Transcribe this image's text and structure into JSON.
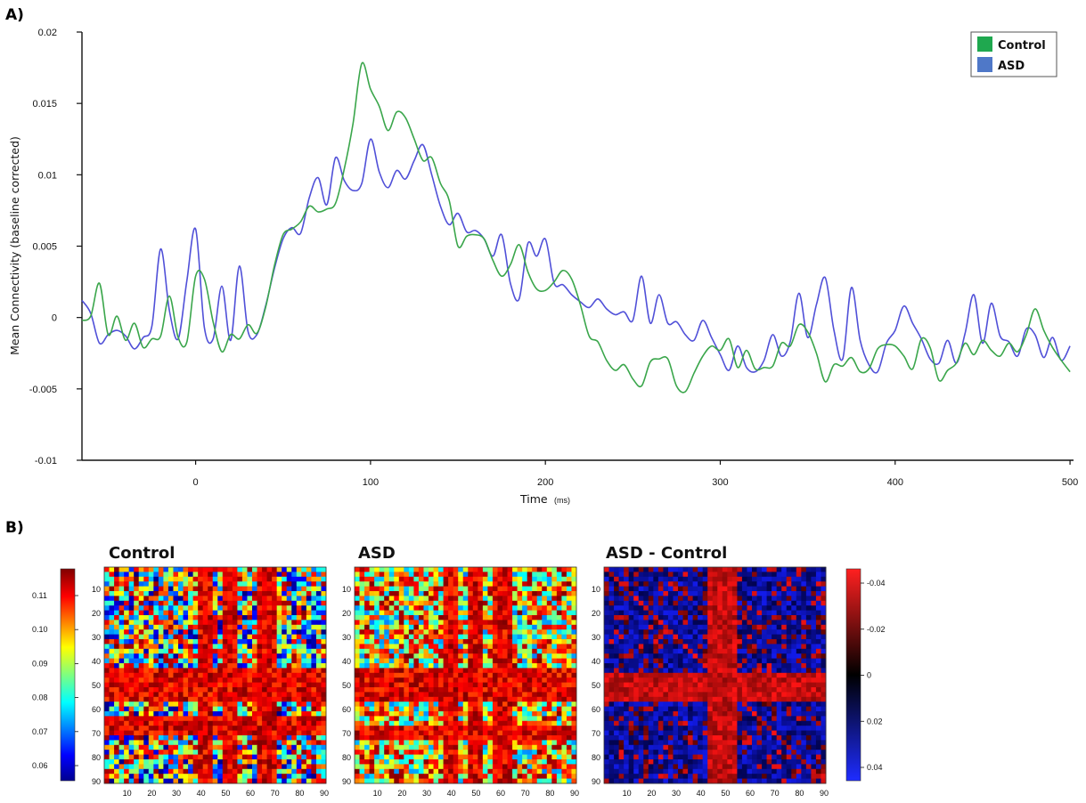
{
  "panels": {
    "a_label": "A)",
    "b_label": "B)"
  },
  "chart_data": [
    {
      "type": "line",
      "xlabel": "Time",
      "xlabel_unit": "(ms)",
      "ylabel": "Mean Connectivity (baseline corrected)",
      "xlim": [
        -65,
        502
      ],
      "ylim": [
        -0.01,
        0.02
      ],
      "x_ticks": [
        0,
        100,
        200,
        300,
        400,
        500
      ],
      "x_tick_labels": [
        "0",
        "100",
        "200",
        "300",
        "400",
        "500"
      ],
      "y_ticks": [
        -0.01,
        -0.005,
        0,
        0.005,
        0.01,
        0.015,
        0.02
      ],
      "y_tick_labels": [
        "-0.01",
        "-0.005",
        "0",
        "0.005",
        "0.01",
        "0.015",
        "0.02"
      ],
      "grid": false,
      "legend_position": "top-right",
      "series": [
        {
          "name": "Control",
          "color": "#3aa64b",
          "x": [
            -65,
            -60,
            -55,
            -50,
            -45,
            -40,
            -35,
            -30,
            -25,
            -20,
            -15,
            -10,
            -5,
            0,
            5,
            10,
            15,
            20,
            25,
            30,
            35,
            40,
            45,
            50,
            55,
            60,
            65,
            70,
            75,
            80,
            85,
            90,
            95,
            100,
            105,
            110,
            115,
            120,
            125,
            130,
            135,
            140,
            145,
            150,
            155,
            160,
            165,
            170,
            175,
            180,
            185,
            190,
            195,
            200,
            205,
            210,
            215,
            220,
            225,
            230,
            235,
            240,
            245,
            250,
            255,
            260,
            265,
            270,
            275,
            280,
            285,
            290,
            295,
            300,
            305,
            310,
            315,
            320,
            325,
            330,
            335,
            340,
            345,
            350,
            355,
            360,
            365,
            370,
            375,
            380,
            385,
            390,
            395,
            400,
            405,
            410,
            415,
            420,
            425,
            430,
            435,
            440,
            445,
            450,
            455,
            460,
            465,
            470,
            475,
            480,
            485,
            490,
            495,
            500
          ],
          "values": [
            -0.0002,
            0.0001,
            0.0024,
            -0.0012,
            0.0001,
            -0.0016,
            -0.0004,
            -0.0021,
            -0.0015,
            -0.0013,
            0.0015,
            -0.0014,
            -0.0017,
            0.0029,
            0.0027,
            -0.0003,
            -0.0024,
            -0.0012,
            -0.0015,
            -0.0005,
            -0.0011,
            0.0007,
            0.0036,
            0.0058,
            0.0062,
            0.0067,
            0.0078,
            0.0074,
            0.0076,
            0.008,
            0.0104,
            0.0136,
            0.0178,
            0.016,
            0.0148,
            0.0131,
            0.0144,
            0.014,
            0.0125,
            0.011,
            0.0112,
            0.0094,
            0.0082,
            0.005,
            0.0057,
            0.0058,
            0.0055,
            0.004,
            0.0029,
            0.0037,
            0.0051,
            0.0032,
            0.002,
            0.0019,
            0.0025,
            0.0033,
            0.0027,
            0.0009,
            -0.0013,
            -0.0017,
            -0.003,
            -0.0037,
            -0.0033,
            -0.0043,
            -0.0048,
            -0.0031,
            -0.0029,
            -0.0029,
            -0.0048,
            -0.0052,
            -0.0039,
            -0.0027,
            -0.002,
            -0.0023,
            -0.0015,
            -0.0035,
            -0.0023,
            -0.0036,
            -0.0035,
            -0.0034,
            -0.0018,
            -0.002,
            -0.0005,
            -0.001,
            -0.0025,
            -0.0045,
            -0.0033,
            -0.0034,
            -0.0028,
            -0.0038,
            -0.0036,
            -0.0022,
            -0.0019,
            -0.002,
            -0.0027,
            -0.0036,
            -0.0015,
            -0.0021,
            -0.0044,
            -0.0037,
            -0.0032,
            -0.0018,
            -0.0026,
            -0.0016,
            -0.0023,
            -0.0027,
            -0.0018,
            -0.0024,
            -0.0012,
            0.0006,
            -0.0009,
            -0.0021,
            -0.003,
            -0.0038
          ]
        },
        {
          "name": "ASD",
          "color": "#5050d8",
          "x": [
            -65,
            -60,
            -55,
            -50,
            -45,
            -40,
            -35,
            -30,
            -25,
            -20,
            -15,
            -10,
            -5,
            0,
            5,
            10,
            15,
            20,
            25,
            30,
            35,
            40,
            45,
            50,
            55,
            60,
            65,
            70,
            75,
            80,
            85,
            90,
            95,
            100,
            105,
            110,
            115,
            120,
            125,
            130,
            135,
            140,
            145,
            150,
            155,
            160,
            165,
            170,
            175,
            180,
            185,
            190,
            195,
            200,
            205,
            210,
            215,
            220,
            225,
            230,
            235,
            240,
            245,
            250,
            255,
            260,
            265,
            270,
            275,
            280,
            285,
            290,
            295,
            300,
            305,
            310,
            315,
            320,
            325,
            330,
            335,
            340,
            345,
            350,
            355,
            360,
            365,
            370,
            375,
            380,
            385,
            390,
            395,
            400,
            405,
            410,
            415,
            420,
            425,
            430,
            435,
            440,
            445,
            450,
            455,
            460,
            465,
            470,
            475,
            480,
            485,
            490,
            495,
            500
          ],
          "values": [
            0.0012,
            0.0003,
            -0.0018,
            -0.0012,
            -0.0009,
            -0.0013,
            -0.0022,
            -0.0014,
            -0.0006,
            0.0048,
            0.0005,
            -0.0015,
            0.0026,
            0.0062,
            -0.0007,
            -0.0015,
            0.0022,
            -0.0016,
            0.0036,
            -0.001,
            -0.0012,
            0.0008,
            0.0034,
            0.0055,
            0.0063,
            0.0059,
            0.0084,
            0.0098,
            0.0079,
            0.0112,
            0.0096,
            0.0089,
            0.0094,
            0.0125,
            0.0102,
            0.0091,
            0.0103,
            0.0097,
            0.011,
            0.0121,
            0.01,
            0.0078,
            0.0065,
            0.0073,
            0.006,
            0.0061,
            0.0055,
            0.0043,
            0.0058,
            0.0024,
            0.0013,
            0.0052,
            0.0043,
            0.0055,
            0.0024,
            0.0023,
            0.0016,
            0.0011,
            0.0007,
            0.0013,
            0.0006,
            0.0002,
            0.0004,
            -0.0002,
            0.0029,
            -0.0004,
            0.0016,
            -0.0004,
            -0.0003,
            -0.0012,
            -0.0016,
            -0.0002,
            -0.0014,
            -0.0026,
            -0.0037,
            -0.002,
            -0.0035,
            -0.0038,
            -0.003,
            -0.0012,
            -0.0027,
            -0.0017,
            0.0017,
            -0.0014,
            0.0009,
            0.0028,
            -0.0009,
            -0.0029,
            0.0021,
            -0.0016,
            -0.0033,
            -0.0038,
            -0.0018,
            -0.0009,
            0.0008,
            -0.0004,
            -0.0015,
            -0.0029,
            -0.0032,
            -0.0016,
            -0.0032,
            -0.0011,
            0.0016,
            -0.0018,
            0.001,
            -0.0013,
            -0.0017,
            -0.0027,
            -0.0008,
            -0.0012,
            -0.0028,
            -0.0014,
            -0.003,
            -0.002
          ]
        }
      ]
    },
    {
      "type": "heatmap",
      "title": "Control",
      "size": 90,
      "tick_labels": [
        "10",
        "20",
        "30",
        "40",
        "50",
        "60",
        "70",
        "80",
        "90"
      ],
      "dominant_rows": [
        45,
        52,
        65
      ],
      "dominant_cols": [
        40,
        50,
        65
      ],
      "colormap": "jet",
      "clim": [
        0.055,
        0.115
      ]
    },
    {
      "type": "heatmap",
      "title": "ASD",
      "size": 90,
      "tick_labels": [
        "10",
        "20",
        "30",
        "40",
        "50",
        "60",
        "70",
        "80",
        "90"
      ],
      "dominant_rows": [
        45,
        51,
        68
      ],
      "dominant_cols": [
        38,
        48,
        59
      ],
      "colormap": "jet",
      "clim": [
        0.055,
        0.115
      ]
    },
    {
      "type": "heatmap",
      "title": "ASD - Control",
      "size": 90,
      "tick_labels": [
        "10",
        "20",
        "30",
        "40",
        "50",
        "60",
        "70",
        "80",
        "90"
      ],
      "dominant_rows": [
        46,
        52
      ],
      "dominant_cols": [
        45,
        50
      ],
      "colormap": "blue-black-red",
      "clim": [
        -0.045,
        0.045
      ]
    }
  ],
  "colorbars": [
    {
      "name": "jet",
      "tick_labels": [
        "0.11",
        "0.10",
        "0.09",
        "0.08",
        "0.07",
        "0.06"
      ]
    },
    {
      "name": "difference",
      "tick_labels": [
        "-0.04",
        "-0.02",
        "0",
        "0.02",
        "0.04"
      ]
    }
  ]
}
